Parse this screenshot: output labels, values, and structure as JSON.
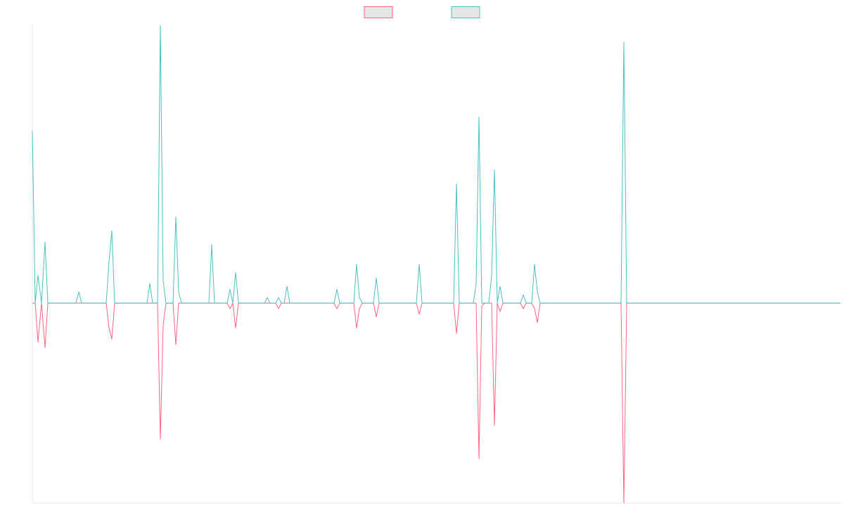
{
  "chart_data": {
    "type": "line",
    "x": [
      0,
      4,
      8,
      13,
      18,
      22,
      62,
      66,
      70,
      105,
      109,
      113,
      117,
      163,
      167,
      171,
      178,
      182,
      186,
      190,
      200,
      204,
      208,
      212,
      251,
      255,
      259,
      277,
      281,
      285,
      289,
      293,
      330,
      334,
      338,
      346,
      350,
      354,
      358,
      362,
      366,
      429,
      433,
      437,
      457,
      461,
      465,
      469,
      485,
      489,
      493,
      546,
      550,
      554,
      599,
      603,
      607,
      627,
      631,
      635,
      639,
      643,
      649,
      653,
      657,
      661,
      665,
      669,
      694,
      698,
      702,
      710,
      714,
      718,
      722,
      837,
      841,
      845,
      1149
    ],
    "xlim": [
      0,
      1149
    ],
    "ylim": [
      -72,
      100
    ],
    "legend": "top",
    "series": [
      {
        "color": "#ff6384",
        "values": [
          0,
          0,
          -14,
          0,
          -16,
          0,
          0,
          0,
          0,
          0,
          -9,
          -13,
          0,
          0,
          0,
          0,
          0,
          -49,
          -8,
          0,
          0,
          -15,
          0,
          0,
          0,
          0,
          0,
          0,
          -2,
          0,
          -9,
          0,
          0,
          0,
          0,
          0,
          -2,
          0,
          0,
          0,
          0,
          0,
          -2,
          0,
          0,
          -9,
          -2,
          0,
          0,
          -5,
          0,
          0,
          -4,
          0,
          0,
          -11,
          0,
          0,
          0,
          -56,
          -1,
          0,
          0,
          0,
          -44,
          0,
          -3,
          0,
          0,
          -2,
          0,
          0,
          -2,
          -7,
          0,
          0,
          -72,
          0,
          0
        ]
      },
      {
        "color": "#4bc0c0",
        "values": [
          62,
          0,
          10,
          0,
          22,
          0,
          0,
          4,
          0,
          0,
          15,
          26,
          0,
          0,
          7,
          0,
          0,
          100,
          8,
          0,
          0,
          31,
          4,
          0,
          0,
          21,
          0,
          0,
          5,
          0,
          11,
          0,
          0,
          2,
          0,
          0,
          2,
          0,
          0,
          6,
          0,
          0,
          5,
          0,
          0,
          14,
          2,
          0,
          0,
          9,
          0,
          0,
          14,
          0,
          0,
          43,
          0,
          0,
          7,
          67,
          0,
          0,
          0,
          10,
          48,
          0,
          6,
          0,
          0,
          3,
          0,
          0,
          14,
          4,
          0,
          0,
          94,
          0,
          0
        ]
      }
    ]
  }
}
